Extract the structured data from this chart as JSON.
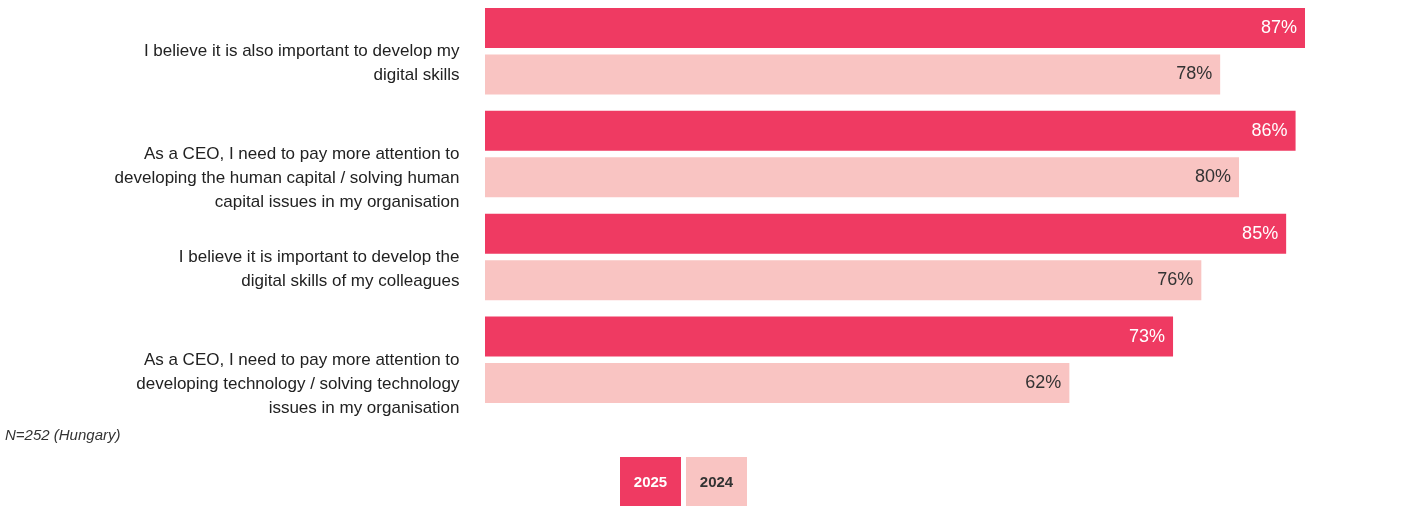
{
  "chart_data": {
    "type": "bar",
    "orientation": "horizontal",
    "legend": "bottom",
    "categories": [
      "I believe it is also important to develop my digital skills",
      "As a CEO, I need to pay more attention to developing the human capital / solving human capital issues in my organisation",
      "I believe it is important to develop the digital skills of my colleagues",
      "As a CEO, I need to pay more attention to developing technology / solving technology issues in my organisation"
    ],
    "series": [
      {
        "name": "2025",
        "color": "#ef3a62",
        "values": [
          87,
          86,
          85,
          73
        ],
        "value_labels": [
          "87%",
          "86%",
          "85%",
          "73%"
        ]
      },
      {
        "name": "2024",
        "color": "#f9c4c2",
        "values": [
          78,
          80,
          76,
          62
        ],
        "value_labels": [
          "78%",
          "80%",
          "76%",
          "62%"
        ]
      }
    ],
    "annotations": [
      "N=252 (Hungary)"
    ]
  }
}
